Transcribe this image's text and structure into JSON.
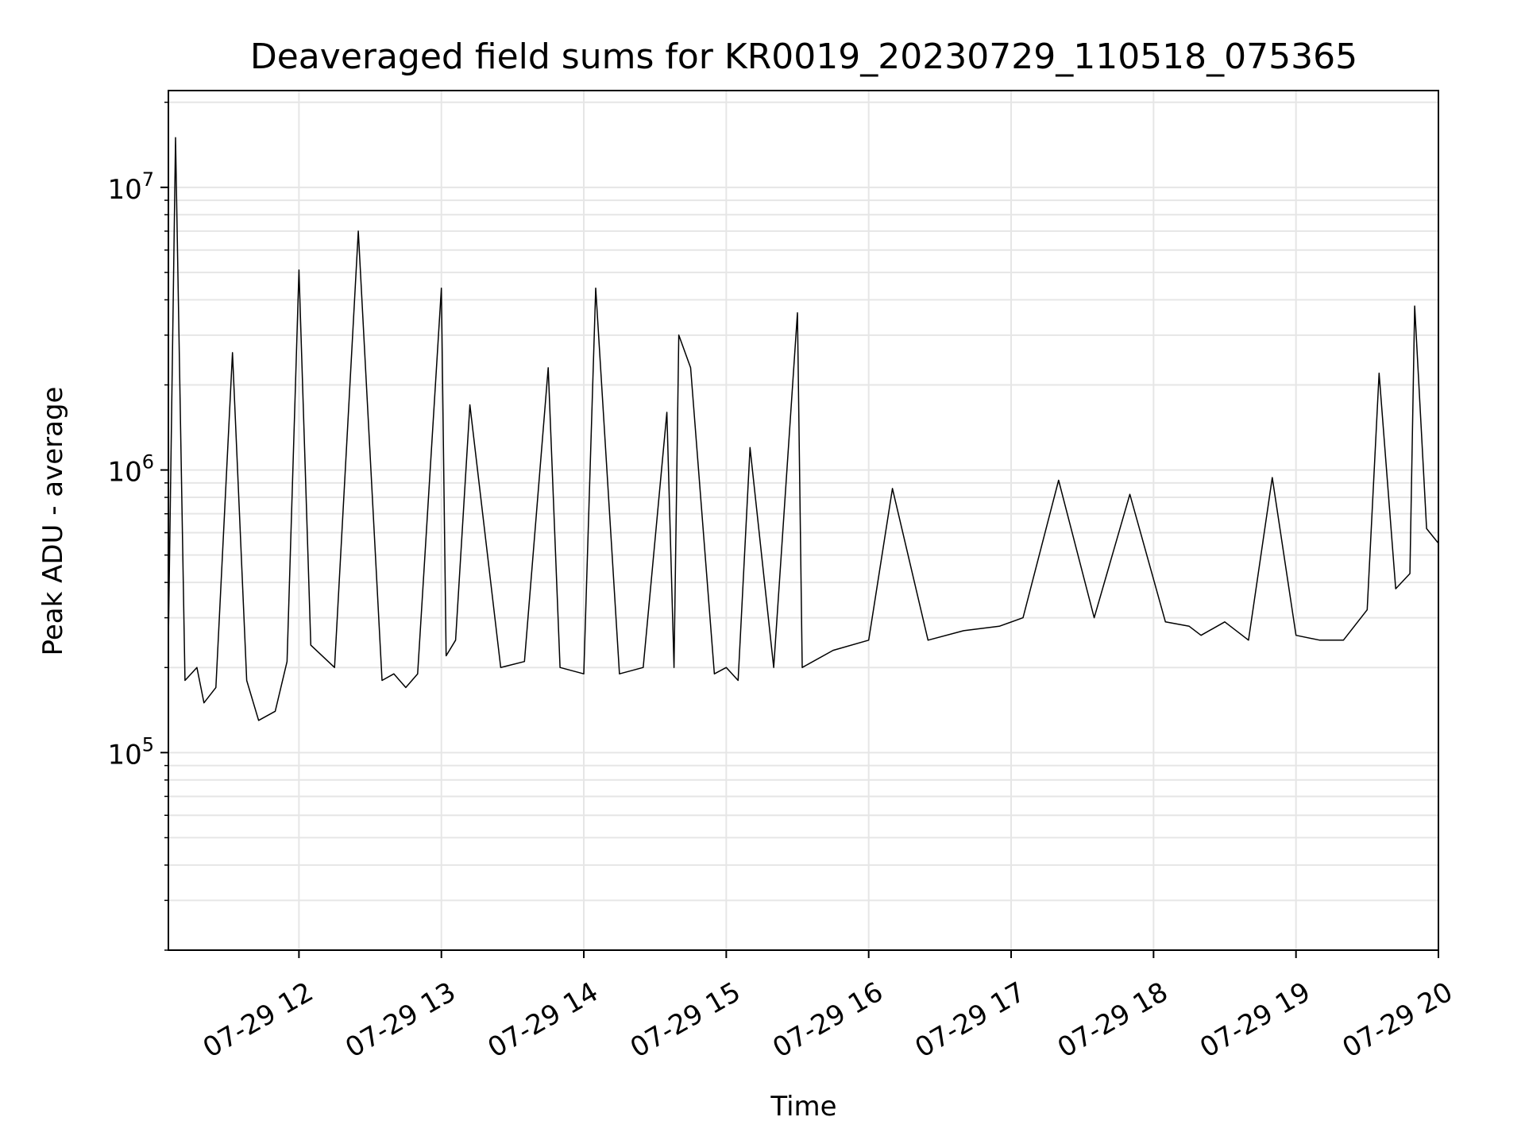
{
  "chart_data": {
    "type": "line",
    "title": "Deaveraged field sums for KR0019_20230729_110518_075365",
    "xlabel": "Time",
    "ylabel": "Peak ADU - average",
    "x_scale": "time",
    "y_scale": "log",
    "xlim": [
      "2023-07-29 11:05",
      "2023-07-29 20:00"
    ],
    "ylim": [
      20000,
      22000000
    ],
    "grid": true,
    "legend": "none",
    "x_ticks": [
      {
        "value": "2023-07-29 12:00",
        "label": "07-29 12"
      },
      {
        "value": "2023-07-29 13:00",
        "label": "07-29 13"
      },
      {
        "value": "2023-07-29 14:00",
        "label": "07-29 14"
      },
      {
        "value": "2023-07-29 15:00",
        "label": "07-29 15"
      },
      {
        "value": "2023-07-29 16:00",
        "label": "07-29 16"
      },
      {
        "value": "2023-07-29 17:00",
        "label": "07-29 17"
      },
      {
        "value": "2023-07-29 18:00",
        "label": "07-29 18"
      },
      {
        "value": "2023-07-29 19:00",
        "label": "07-29 19"
      },
      {
        "value": "2023-07-29 20:00",
        "label": "07-29 20"
      }
    ],
    "y_ticks": [
      {
        "value": 100000,
        "base": "10",
        "exp": "5"
      },
      {
        "value": 1000000,
        "base": "10",
        "exp": "6"
      },
      {
        "value": 10000000,
        "base": "10",
        "exp": "7"
      }
    ],
    "colors": {
      "line": "#000000",
      "grid": "#e6e6e6",
      "axes": "#000000",
      "background": "#ffffff"
    },
    "series": [
      {
        "x": [
          "2023-07-29 11:05",
          "2023-07-29 11:08",
          "2023-07-29 11:12",
          "2023-07-29 11:17",
          "2023-07-29 11:20",
          "2023-07-29 11:25",
          "2023-07-29 11:32",
          "2023-07-29 11:38",
          "2023-07-29 11:43",
          "2023-07-29 11:50",
          "2023-07-29 11:55",
          "2023-07-29 12:00",
          "2023-07-29 12:05",
          "2023-07-29 12:15",
          "2023-07-29 12:25",
          "2023-07-29 12:35",
          "2023-07-29 12:40",
          "2023-07-29 12:45",
          "2023-07-29 12:50",
          "2023-07-29 13:00",
          "2023-07-29 13:02",
          "2023-07-29 13:06",
          "2023-07-29 13:12",
          "2023-07-29 13:25",
          "2023-07-29 13:35",
          "2023-07-29 13:45",
          "2023-07-29 13:50",
          "2023-07-29 14:00",
          "2023-07-29 14:05",
          "2023-07-29 14:15",
          "2023-07-29 14:25",
          "2023-07-29 14:35",
          "2023-07-29 14:38",
          "2023-07-29 14:40",
          "2023-07-29 14:45",
          "2023-07-29 14:55",
          "2023-07-29 15:00",
          "2023-07-29 15:05",
          "2023-07-29 15:10",
          "2023-07-29 15:20",
          "2023-07-29 15:30",
          "2023-07-29 15:32",
          "2023-07-29 15:45",
          "2023-07-29 16:00",
          "2023-07-29 16:10",
          "2023-07-29 16:25",
          "2023-07-29 16:40",
          "2023-07-29 16:55",
          "2023-07-29 17:05",
          "2023-07-29 17:20",
          "2023-07-29 17:35",
          "2023-07-29 17:50",
          "2023-07-29 18:05",
          "2023-07-29 18:15",
          "2023-07-29 18:20",
          "2023-07-29 18:30",
          "2023-07-29 18:40",
          "2023-07-29 18:50",
          "2023-07-29 19:00",
          "2023-07-29 19:10",
          "2023-07-29 19:20",
          "2023-07-29 19:30",
          "2023-07-29 19:35",
          "2023-07-29 19:42",
          "2023-07-29 19:48",
          "2023-07-29 19:50",
          "2023-07-29 19:55",
          "2023-07-29 20:00"
        ],
        "y": [
          250000,
          15000000,
          180000,
          200000,
          150000,
          170000,
          2600000,
          180000,
          130000,
          140000,
          210000,
          5100000,
          240000,
          200000,
          7000000,
          180000,
          190000,
          170000,
          190000,
          4400000,
          220000,
          250000,
          1700000,
          200000,
          210000,
          2300000,
          200000,
          190000,
          4400000,
          190000,
          200000,
          1600000,
          200000,
          3000000,
          2300000,
          190000,
          200000,
          180000,
          1200000,
          200000,
          3600000,
          200000,
          230000,
          250000,
          860000,
          250000,
          270000,
          280000,
          300000,
          920000,
          300000,
          820000,
          290000,
          280000,
          260000,
          290000,
          250000,
          940000,
          260000,
          250000,
          250000,
          320000,
          2200000,
          380000,
          430000,
          3800000,
          620000,
          550000
        ]
      }
    ]
  }
}
